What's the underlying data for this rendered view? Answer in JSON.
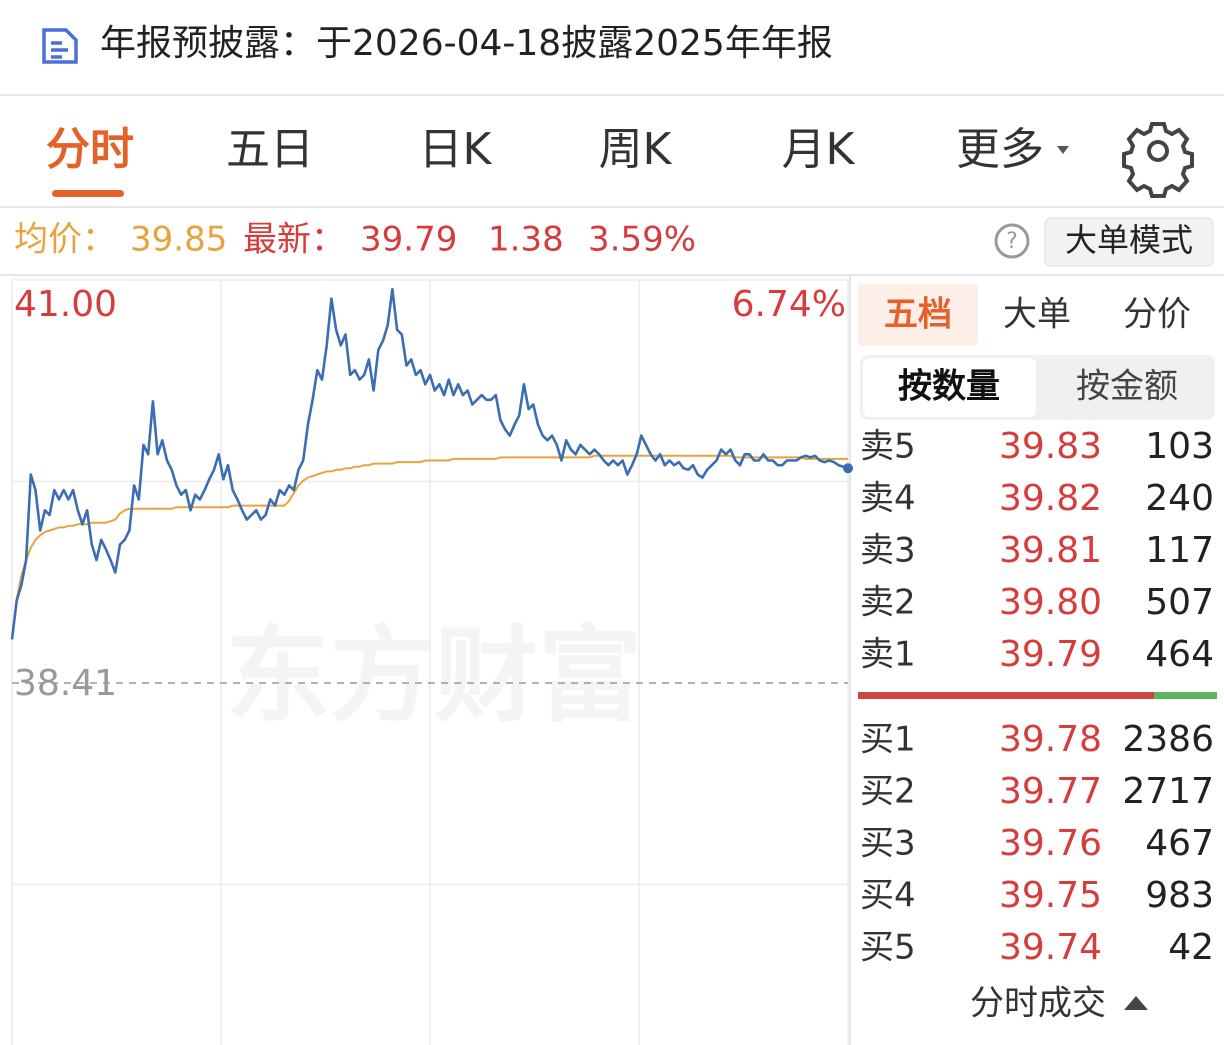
{
  "header": {
    "title": "年报预披露：于2026-04-18披露2025年年报"
  },
  "tabs": [
    "分时",
    "五日",
    "日K",
    "周K",
    "月K",
    "更多"
  ],
  "quote": {
    "avg_label": "均价：",
    "avg": "39.85",
    "last_label": "最新：",
    "last": "39.79",
    "change": "1.38",
    "change_pct": "3.59%"
  },
  "mode_button": "大单模式",
  "chart_data": {
    "type": "line",
    "watermark": "东方财富",
    "ylim": [
      35.82,
      41.0
    ],
    "yticks": [
      {
        "value": 41.0,
        "label": "41.00"
      },
      38.41
    ],
    "y2lim": [
      -6.74,
      6.74
    ],
    "y2ticks": [
      {
        "value": 6.74,
        "label": "6.74%"
      }
    ],
    "series": [
      {
        "color": "#3a6db3",
        "values": [
          38.69,
          38.94,
          39.04,
          39.2,
          39.75,
          39.65,
          39.39,
          39.52,
          39.49,
          39.65,
          39.59,
          39.65,
          39.59,
          39.65,
          39.52,
          39.43,
          39.52,
          39.3,
          39.2,
          39.33,
          39.27,
          39.2,
          39.12,
          39.3,
          39.33,
          39.39,
          39.68,
          39.59,
          39.94,
          39.88,
          40.22,
          39.88,
          39.97,
          39.84,
          39.78,
          39.68,
          39.62,
          39.65,
          39.52,
          39.62,
          39.59,
          39.65,
          39.72,
          39.78,
          39.88,
          39.72,
          39.81,
          39.65,
          39.59,
          39.52,
          39.46,
          39.49,
          39.52,
          39.46,
          39.49,
          39.59,
          39.55,
          39.65,
          39.62,
          39.68,
          39.65,
          39.78,
          39.84,
          40.07,
          40.23,
          40.42,
          40.36,
          40.58,
          40.88,
          40.68,
          40.58,
          40.65,
          40.39,
          40.42,
          40.36,
          40.39,
          40.49,
          40.29,
          40.55,
          40.61,
          40.71,
          40.94,
          40.68,
          40.65,
          40.45,
          40.49,
          40.39,
          40.42,
          40.33,
          40.39,
          40.29,
          40.33,
          40.26,
          40.36,
          40.26,
          40.33,
          40.26,
          40.29,
          40.2,
          40.23,
          40.26,
          40.23,
          40.23,
          40.26,
          40.1,
          40.04,
          40.0,
          40.07,
          40.13,
          40.33,
          40.17,
          40.2,
          40.07,
          40.0,
          39.97,
          40.0,
          39.94,
          39.84,
          39.97,
          39.91,
          39.88,
          39.94,
          39.91,
          39.88,
          39.91,
          39.88,
          39.84,
          39.81,
          39.84,
          39.81,
          39.84,
          39.75,
          39.81,
          39.88,
          40.0,
          39.94,
          39.88,
          39.84,
          39.88,
          39.81,
          39.84,
          39.81,
          39.83,
          39.79,
          39.78,
          39.81,
          39.75,
          39.73,
          39.78,
          39.81,
          39.84,
          39.91,
          39.88,
          39.91,
          39.84,
          39.81,
          39.88,
          39.88,
          39.84,
          39.84,
          39.88,
          39.84,
          39.84,
          39.81,
          39.81,
          39.84,
          39.84,
          39.84,
          39.86,
          39.87,
          39.86,
          39.87,
          39.84,
          39.83,
          39.84,
          39.83,
          39.81,
          39.8,
          39.79
        ]
      },
      {
        "color": "#e8a33a",
        "values": [
          38.69,
          38.95,
          39.1,
          39.2,
          39.28,
          39.33,
          39.36,
          39.38,
          39.39,
          39.4,
          39.41,
          39.41,
          39.42,
          39.42,
          39.43,
          39.43,
          39.43,
          39.44,
          39.44,
          39.44,
          39.44,
          39.45,
          39.46,
          39.5,
          39.52,
          39.53,
          39.53,
          39.53,
          39.53,
          39.53,
          39.53,
          39.53,
          39.53,
          39.53,
          39.53,
          39.54,
          39.54,
          39.54,
          39.54,
          39.54,
          39.54,
          39.54,
          39.54,
          39.54,
          39.54,
          39.54,
          39.54,
          39.55,
          39.55,
          39.55,
          39.55,
          39.55,
          39.55,
          39.55,
          39.55,
          39.55,
          39.55,
          39.55,
          39.55,
          39.58,
          39.63,
          39.68,
          39.71,
          39.73,
          39.74,
          39.75,
          39.76,
          39.77,
          39.77,
          39.78,
          39.78,
          39.79,
          39.79,
          39.8,
          39.8,
          39.81,
          39.81,
          39.82,
          39.82,
          39.82,
          39.82,
          39.82,
          39.83,
          39.83,
          39.83,
          39.83,
          39.83,
          39.83,
          39.84,
          39.84,
          39.84,
          39.84,
          39.84,
          39.84,
          39.85,
          39.85,
          39.85,
          39.85,
          39.85,
          39.85,
          39.85,
          39.85,
          39.85,
          39.85,
          39.86,
          39.86,
          39.86,
          39.86,
          39.86,
          39.86,
          39.86,
          39.86,
          39.86,
          39.86,
          39.86,
          39.86,
          39.86,
          39.86,
          39.86,
          39.86,
          39.86,
          39.86,
          39.86,
          39.86,
          39.87,
          39.87,
          39.87,
          39.87,
          39.87,
          39.87,
          39.87,
          39.87,
          39.87,
          39.87,
          39.87,
          39.87,
          39.87,
          39.87,
          39.87,
          39.87,
          39.87,
          39.87,
          39.87,
          39.87,
          39.87,
          39.87,
          39.87,
          39.87,
          39.87,
          39.87,
          39.87,
          39.87,
          39.87,
          39.87,
          39.86,
          39.86,
          39.86,
          39.86,
          39.86,
          39.86,
          39.86,
          39.86,
          39.86,
          39.86,
          39.86,
          39.86,
          39.86,
          39.86,
          39.86,
          39.85,
          39.85,
          39.85,
          39.85,
          39.85,
          39.85,
          39.85,
          39.85,
          39.85,
          39.85
        ]
      }
    ]
  },
  "order_book": {
    "tabs": [
      "五档",
      "大单",
      "分价"
    ],
    "subtabs": [
      "按数量",
      "按金额"
    ],
    "asks": [
      [
        "卖5",
        "39.83",
        "103"
      ],
      [
        "卖4",
        "39.82",
        "240"
      ],
      [
        "卖3",
        "39.81",
        "117"
      ],
      [
        "卖2",
        "39.80",
        "507"
      ],
      [
        "卖1",
        "39.79",
        "464"
      ]
    ],
    "bids": [
      [
        "买1",
        "39.78",
        "2386"
      ],
      [
        "买2",
        "39.77",
        "2717"
      ],
      [
        "买3",
        "39.76",
        "467"
      ],
      [
        "买4",
        "39.75",
        "983"
      ],
      [
        "买5",
        "39.74",
        "42"
      ]
    ],
    "footer": "分时成交"
  }
}
